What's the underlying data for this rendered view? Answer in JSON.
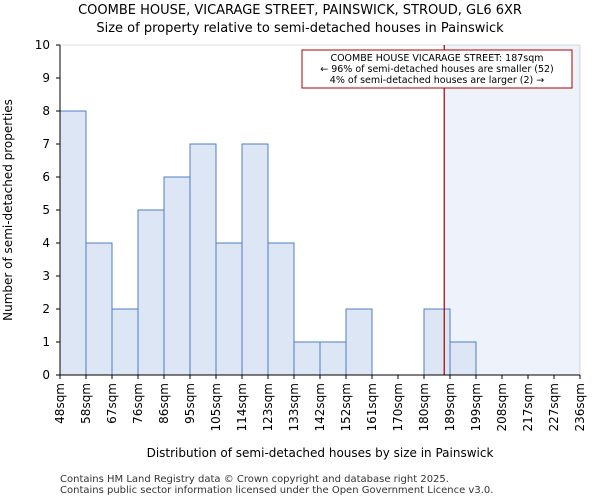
{
  "title_line1": "COOMBE HOUSE, VICARAGE STREET, PAINSWICK, STROUD, GL6 6XR",
  "title_line2": "Size of property relative to semi-detached houses in Painswick",
  "footer_line1": "Contains HM Land Registry data © Crown copyright and database right 2025.",
  "footer_line2": "Contains public sector information licensed under the Open Government Licence v3.0.",
  "colors": {
    "bar_fill": "#dce6f5",
    "bar_stroke": "#4f7fc4",
    "highlight_region": "#eef3fb",
    "marker_line": "#a00000",
    "annotation_border": "#b00000"
  },
  "chart_data": {
    "type": "bar",
    "xlabel": "Distribution of semi-detached houses by size in Painswick",
    "ylabel": "Number of semi-detached properties",
    "ylim": [
      0,
      10
    ],
    "yticks": [
      0,
      1,
      2,
      3,
      4,
      5,
      6,
      7,
      8,
      9,
      10
    ],
    "bin_edges_sqm": [
      48,
      58,
      67,
      76,
      86,
      95,
      105,
      114,
      123,
      133,
      142,
      152,
      161,
      170,
      180,
      189,
      199,
      208,
      217,
      227,
      236
    ],
    "tick_labels": [
      "48sqm",
      "58sqm",
      "67sqm",
      "76sqm",
      "86sqm",
      "95sqm",
      "105sqm",
      "114sqm",
      "123sqm",
      "133sqm",
      "142sqm",
      "152sqm",
      "161sqm",
      "170sqm",
      "180sqm",
      "189sqm",
      "199sqm",
      "208sqm",
      "217sqm",
      "227sqm",
      "236sqm"
    ],
    "values": [
      8,
      4,
      2,
      5,
      6,
      7,
      4,
      7,
      4,
      1,
      1,
      2,
      0,
      0,
      2,
      1,
      0,
      0,
      0,
      0
    ],
    "marker_sqm": 187,
    "grid": false,
    "annotation": {
      "line1": "COOMBE HOUSE VICARAGE STREET: 187sqm",
      "line2": "← 96% of semi-detached houses are smaller (52)",
      "line3": "4% of semi-detached houses are larger (2) →"
    }
  }
}
